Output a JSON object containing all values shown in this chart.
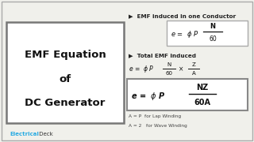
{
  "bg_color": "#f0f0eb",
  "title_lines": [
    "EMF Equation",
    "of",
    "DC Generator"
  ],
  "label1": "▶  EMF induced in one Conductor",
  "label2": "▶  Total EMF induced",
  "note1": "A = P  for Lap Winding",
  "note2": "A = 2   for Wave Winding",
  "brand1": "Electrical",
  "brand2": " Deck",
  "brand1_color": "#29abe2",
  "brand2_color": "#333333",
  "outer_border_color": "#aaaaaa",
  "inner_box_color": "#777777",
  "eq_box1_color": "#aaaaaa",
  "eq_box3_color": "#888888",
  "title_fontsize": 9.5,
  "label_fontsize": 5.2,
  "eq_fontsize": 6.0,
  "eq3_fontsize": 7.0,
  "note_fontsize": 4.2,
  "brand_fontsize": 5.0
}
